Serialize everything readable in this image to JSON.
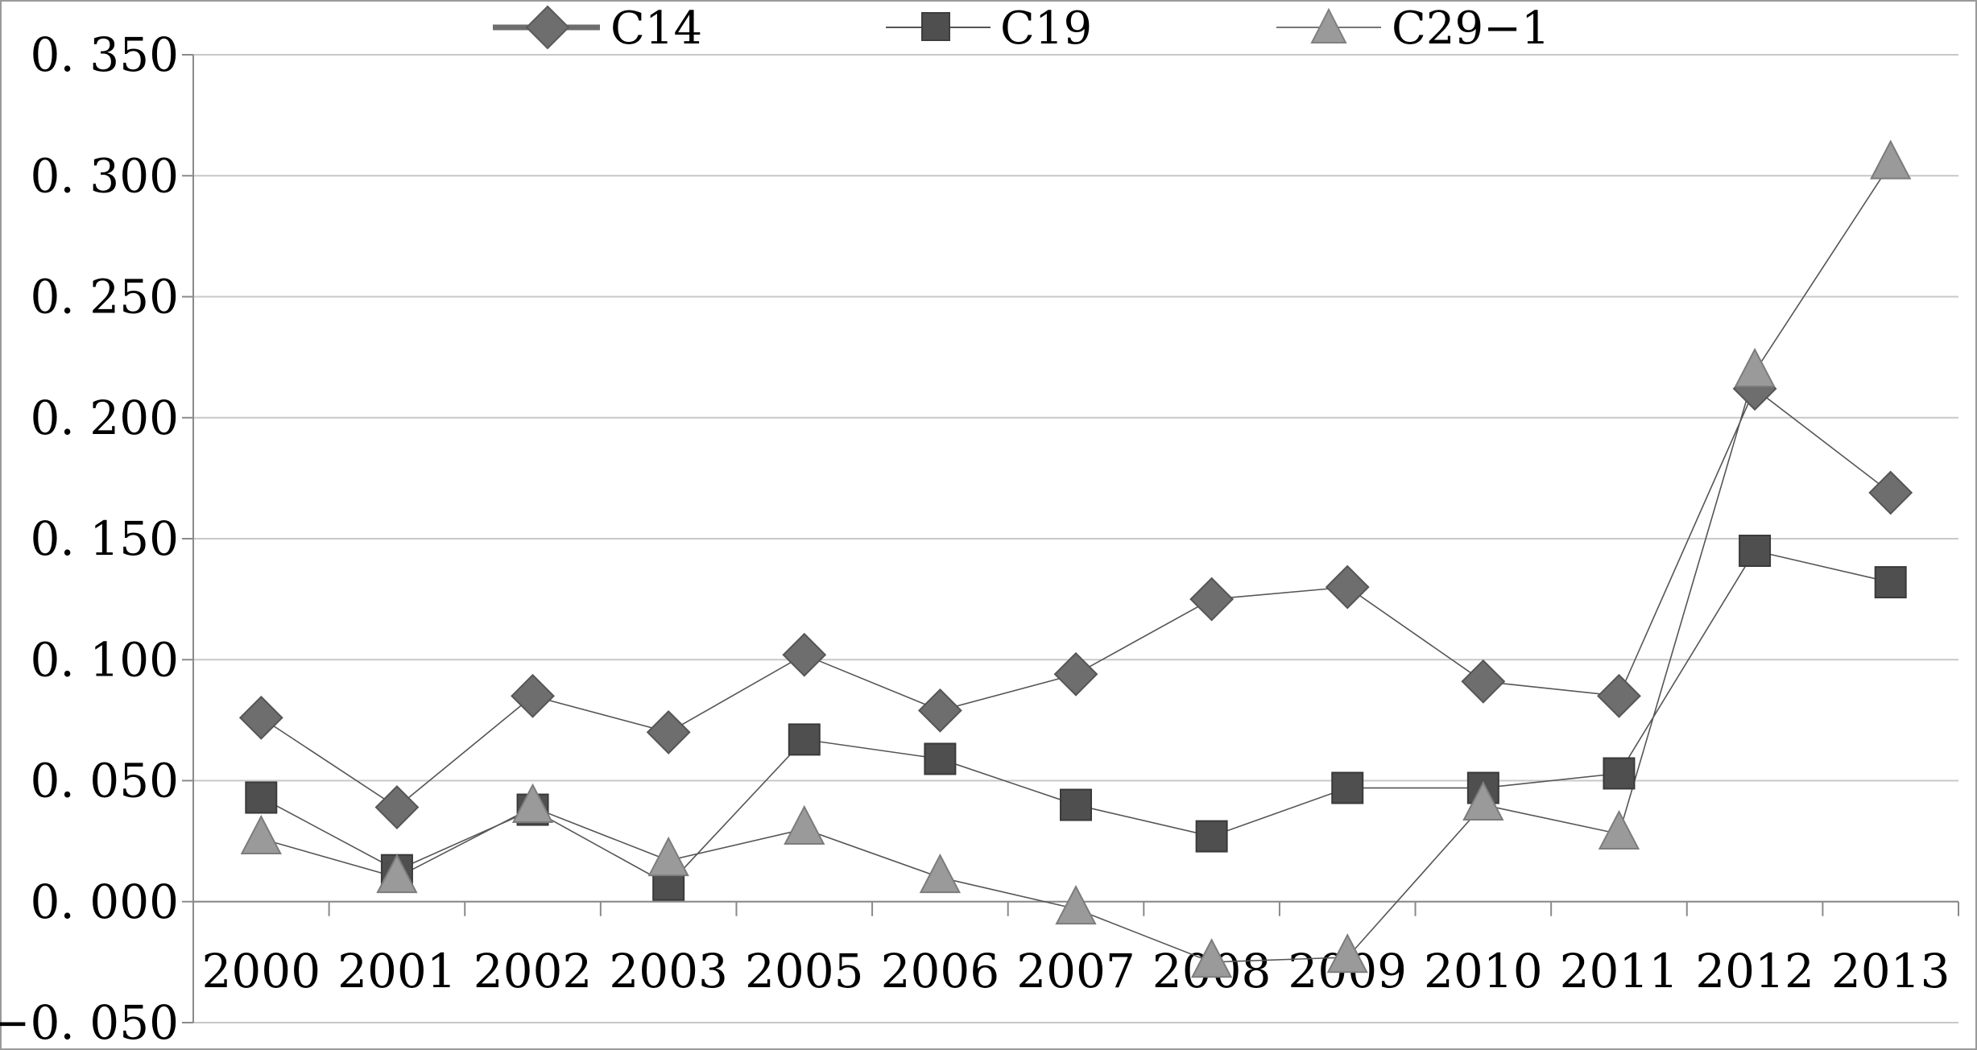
{
  "chart_data": {
    "type": "line",
    "title": "",
    "xlabel": "",
    "ylabel": "",
    "categories": [
      "2000",
      "2001",
      "2002",
      "2003",
      "2005",
      "2006",
      "2007",
      "2008",
      "2009",
      "2010",
      "2011",
      "2012",
      "2013"
    ],
    "ylim": [
      -0.05,
      0.35
    ],
    "yticks": [
      -0.05,
      0.0,
      0.05,
      0.1,
      0.15,
      0.2,
      0.25,
      0.3,
      0.35
    ],
    "ytick_labels": [
      "−0. 050",
      "0. 000",
      "0. 050",
      "0. 100",
      "0. 150",
      "0. 200",
      "0. 250",
      "0. 300",
      "0. 350"
    ],
    "grid": true,
    "legend_position": "top",
    "series": [
      {
        "name": "C14",
        "marker": "diamond",
        "color": "#6e6e6e",
        "values": [
          0.076,
          0.039,
          0.085,
          0.07,
          0.102,
          0.079,
          0.094,
          0.125,
          0.13,
          0.091,
          0.085,
          0.212,
          0.169
        ]
      },
      {
        "name": "C19",
        "marker": "square",
        "color": "#4f4f4f",
        "values": [
          0.043,
          0.013,
          0.038,
          0.007,
          0.067,
          0.059,
          0.04,
          0.027,
          0.047,
          0.047,
          0.053,
          0.145,
          0.132
        ]
      },
      {
        "name": "C29-1",
        "marker": "triangle",
        "color": "#9a9a9a",
        "values": [
          0.026,
          0.01,
          0.039,
          0.017,
          0.03,
          0.01,
          -0.003,
          -0.025,
          -0.023,
          0.04,
          0.028,
          0.219,
          0.305
        ]
      }
    ]
  },
  "legend": {
    "c14_label": "C14",
    "c19_label": "C19",
    "c29_label": "C29−1"
  }
}
